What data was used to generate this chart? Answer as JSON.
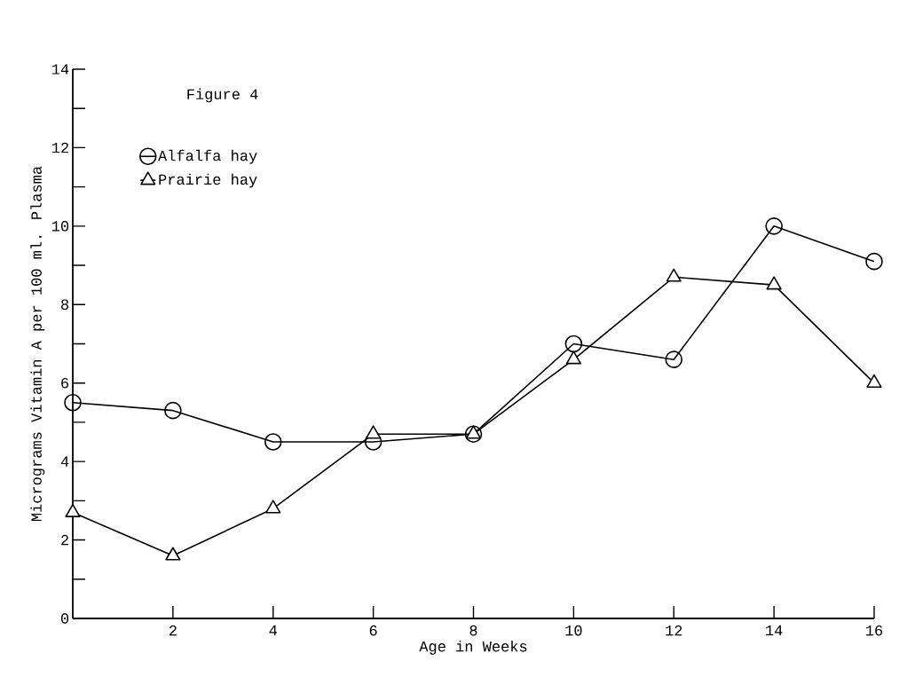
{
  "chart_data": {
    "type": "line",
    "title": "Figure 4",
    "xlabel": "Age in Weeks",
    "ylabel": "Micrograms Vitamin A per 100 ml. Plasma",
    "x": [
      0,
      2,
      4,
      6,
      8,
      10,
      12,
      14,
      16
    ],
    "series": [
      {
        "name": "Alfalfa hay",
        "color": "#000000",
        "marker": "circle",
        "values": [
          5.5,
          5.3,
          4.5,
          4.5,
          4.7,
          7.0,
          6.6,
          10.0,
          9.1
        ]
      },
      {
        "name": "Prairie hay",
        "color": "#000000",
        "marker": "triangle",
        "values": [
          2.7,
          1.6,
          2.8,
          4.7,
          4.7,
          6.6,
          8.7,
          8.5,
          6.0
        ]
      }
    ],
    "xlim": [
      0,
      16
    ],
    "ylim": [
      0,
      14
    ],
    "xticks": [
      2,
      4,
      6,
      8,
      10,
      12,
      14,
      16
    ],
    "yticks": [
      0,
      {
        "value": 1,
        "label": null
      },
      2,
      {
        "value": 3,
        "label": null
      },
      4,
      {
        "value": 5,
        "label": null
      },
      6,
      {
        "value": 7,
        "label": null
      },
      8,
      {
        "value": 9,
        "label": null
      },
      10,
      {
        "value": 11,
        "label": null
      },
      12,
      {
        "value": 13,
        "label": null
      },
      14
    ],
    "grid": false,
    "legend": "top left",
    "line_style": "solid"
  }
}
